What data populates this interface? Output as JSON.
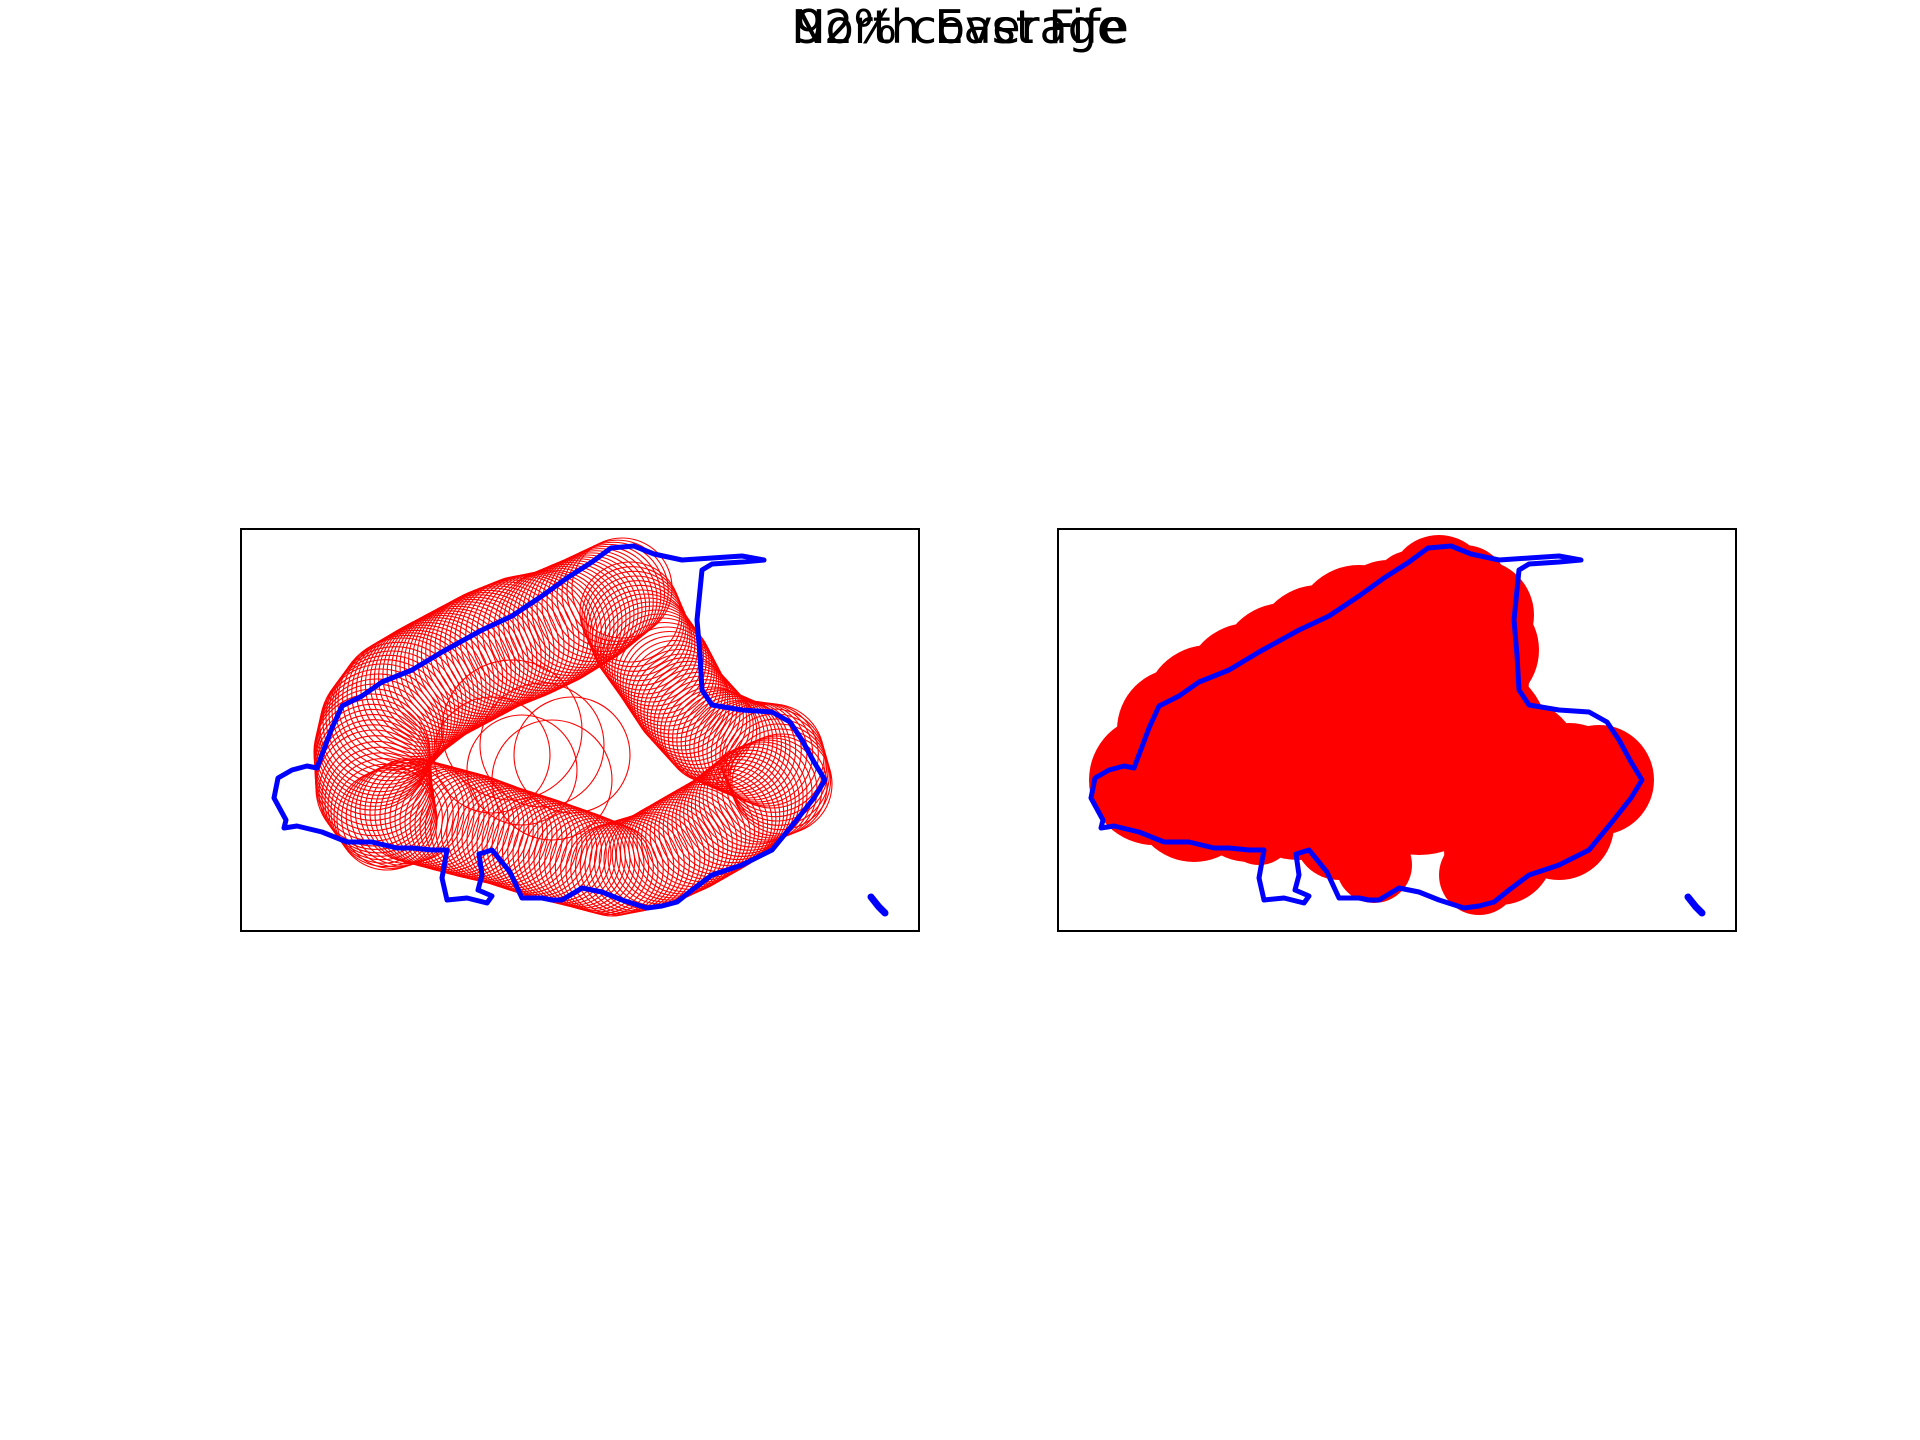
{
  "figure": {
    "title": "North East Fife",
    "subtitle": "92% coverage"
  },
  "colors": {
    "boundary": "#0000ff",
    "coverage": "#ff0000",
    "frame": "#000000",
    "background": "#ffffff"
  },
  "panels": [
    {
      "id": "left",
      "style": "outline-circles"
    },
    {
      "id": "right",
      "style": "filled-union"
    }
  ]
}
